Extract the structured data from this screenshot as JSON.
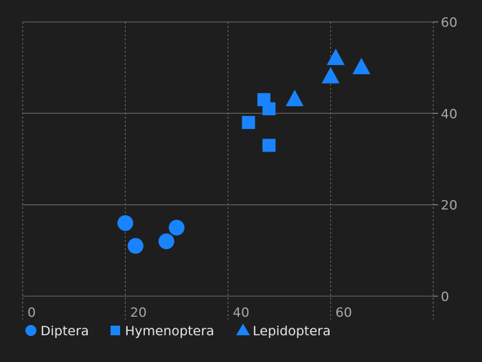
{
  "chart_data": {
    "type": "scatter",
    "title": "",
    "xlabel": "",
    "ylabel": "",
    "xlim": [
      0,
      80
    ],
    "ylim": [
      0,
      60
    ],
    "x_ticks": [
      0,
      20,
      40,
      60
    ],
    "y_ticks": [
      0,
      20,
      40,
      60
    ],
    "x_tick_labels": [
      "0",
      "20",
      "40",
      "60"
    ],
    "y_tick_labels": [
      "0",
      "20",
      "40",
      "60"
    ],
    "y_axis_side": "right",
    "grid": {
      "x": "dashed",
      "y": "solid"
    },
    "legend_placement": "bottom-left",
    "series": [
      {
        "name": "Diptera",
        "marker": "circle",
        "color": "#1a84ff",
        "points": [
          {
            "x": 20,
            "y": 16
          },
          {
            "x": 22,
            "y": 11
          },
          {
            "x": 28,
            "y": 12
          },
          {
            "x": 30,
            "y": 15
          }
        ]
      },
      {
        "name": "Hymenoptera",
        "marker": "square",
        "color": "#1a84ff",
        "points": [
          {
            "x": 44,
            "y": 38
          },
          {
            "x": 47,
            "y": 43
          },
          {
            "x": 48,
            "y": 41
          },
          {
            "x": 48,
            "y": 33
          }
        ]
      },
      {
        "name": "Lepidoptera",
        "marker": "triangle",
        "color": "#1a84ff",
        "points": [
          {
            "x": 53,
            "y": 43
          },
          {
            "x": 60,
            "y": 48
          },
          {
            "x": 61,
            "y": 52
          },
          {
            "x": 66,
            "y": 50
          }
        ]
      }
    ]
  }
}
